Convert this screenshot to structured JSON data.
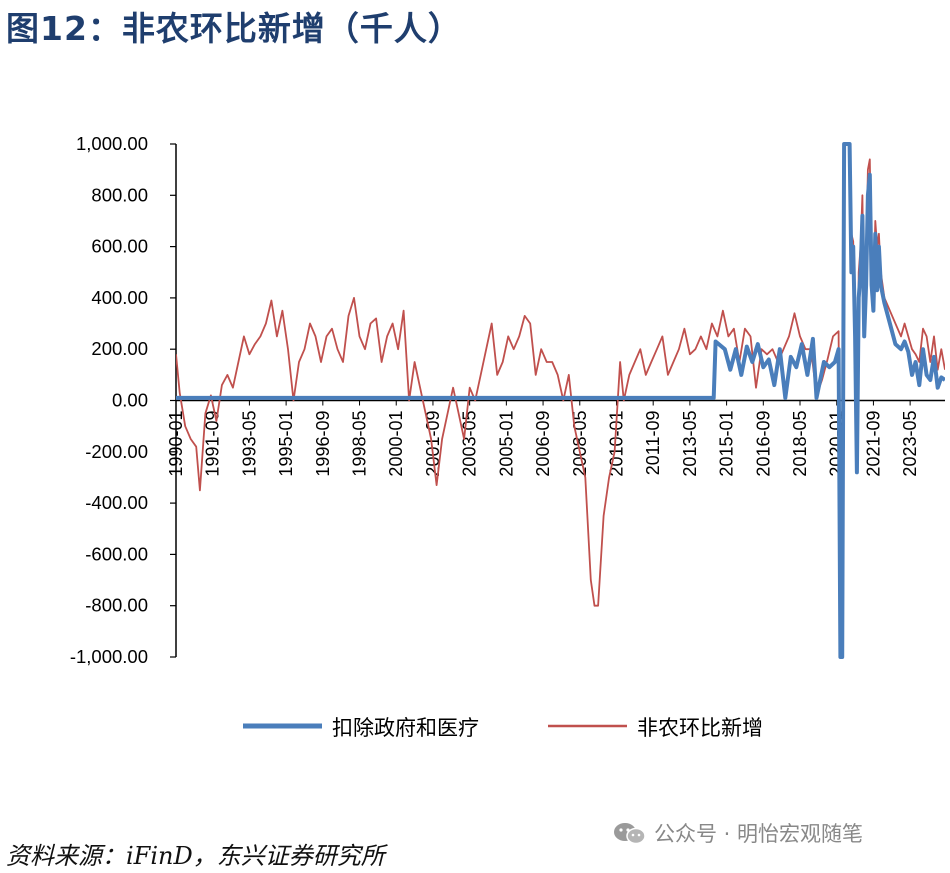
{
  "figure_title": "图12：非农环比新增（千人）",
  "source_note": "资料来源：iFinD，东兴证券研究所",
  "watermark": "公众号 · 明怡宏观随笔",
  "watermark_icon": "wechat-icon",
  "colors": {
    "title": "#1f3e6e",
    "series_ex_gov_health": "#4a7ebb",
    "series_nfp": "#c0504d",
    "axis": "#000000"
  },
  "chart_data": {
    "type": "line",
    "title": "",
    "xlabel": "",
    "ylabel": "",
    "ylim": [
      -1000,
      1000
    ],
    "yticks": [
      1000,
      800,
      600,
      400,
      200,
      0,
      -200,
      -400,
      -600,
      -800,
      -1000
    ],
    "ytick_labels": [
      "1,000.00",
      "800.00",
      "600.00",
      "400.00",
      "200.00",
      "0.00",
      "-200.00",
      "-400.00",
      "-600.00",
      "-800.00",
      "-1,000.00"
    ],
    "xlim": [
      "1990-01",
      "2024-12"
    ],
    "xtick_labels": [
      "1990-01",
      "1991-09",
      "1993-05",
      "1995-01",
      "1996-09",
      "1998-05",
      "2000-01",
      "2001-09",
      "2003-05",
      "2005-01",
      "2006-09",
      "2008-05",
      "2010-01",
      "2011-09",
      "2013-05",
      "2015-01",
      "2016-09",
      "2018-05",
      "2020-01",
      "2021-09",
      "2023-05"
    ],
    "legend_position": "bottom",
    "grid": false,
    "series": [
      {
        "name": "扣除政府和医疗",
        "color": "#4a7ebb",
        "note_x_format": "YYYY-MM",
        "points": [
          [
            "1990-01",
            10
          ],
          [
            "2014-06",
            10
          ],
          [
            "2014-07",
            230
          ],
          [
            "2014-12",
            200
          ],
          [
            "2015-03",
            120
          ],
          [
            "2015-06",
            200
          ],
          [
            "2015-09",
            100
          ],
          [
            "2015-12",
            210
          ],
          [
            "2016-03",
            150
          ],
          [
            "2016-06",
            220
          ],
          [
            "2016-09",
            130
          ],
          [
            "2016-12",
            160
          ],
          [
            "2017-03",
            60
          ],
          [
            "2017-06",
            200
          ],
          [
            "2017-09",
            10
          ],
          [
            "2017-12",
            170
          ],
          [
            "2018-03",
            130
          ],
          [
            "2018-06",
            220
          ],
          [
            "2018-09",
            100
          ],
          [
            "2018-12",
            240
          ],
          [
            "2019-02",
            10
          ],
          [
            "2019-06",
            150
          ],
          [
            "2019-09",
            130
          ],
          [
            "2019-12",
            150
          ],
          [
            "2020-02",
            200
          ],
          [
            "2020-03",
            -1000
          ],
          [
            "2020-04",
            -1000
          ],
          [
            "2020-05",
            1000
          ],
          [
            "2020-06",
            1000
          ],
          [
            "2020-07",
            1000
          ],
          [
            "2020-08",
            1000
          ],
          [
            "2020-09",
            500
          ],
          [
            "2020-10",
            600
          ],
          [
            "2020-11",
            250
          ],
          [
            "2020-12",
            -280
          ],
          [
            "2021-01",
            400
          ],
          [
            "2021-02",
            500
          ],
          [
            "2021-03",
            720
          ],
          [
            "2021-04",
            250
          ],
          [
            "2021-05",
            450
          ],
          [
            "2021-06",
            800
          ],
          [
            "2021-07",
            880
          ],
          [
            "2021-08",
            450
          ],
          [
            "2021-09",
            350
          ],
          [
            "2021-10",
            650
          ],
          [
            "2021-11",
            430
          ],
          [
            "2021-12",
            600
          ],
          [
            "2022-01",
            450
          ],
          [
            "2022-03",
            380
          ],
          [
            "2022-06",
            300
          ],
          [
            "2022-09",
            220
          ],
          [
            "2022-12",
            200
          ],
          [
            "2023-02",
            230
          ],
          [
            "2023-04",
            190
          ],
          [
            "2023-06",
            100
          ],
          [
            "2023-08",
            150
          ],
          [
            "2023-10",
            60
          ],
          [
            "2023-12",
            200
          ],
          [
            "2024-02",
            100
          ],
          [
            "2024-04",
            80
          ],
          [
            "2024-06",
            170
          ],
          [
            "2024-08",
            50
          ],
          [
            "2024-10",
            90
          ],
          [
            "2024-12",
            80
          ]
        ]
      },
      {
        "name": "非农环比新增",
        "color": "#c0504d",
        "note_x_format": "YYYY-MM",
        "points": [
          [
            "1990-01",
            180
          ],
          [
            "1990-03",
            30
          ],
          [
            "1990-06",
            -100
          ],
          [
            "1990-09",
            -150
          ],
          [
            "1990-12",
            -180
          ],
          [
            "1991-02",
            -350
          ],
          [
            "1991-05",
            -50
          ],
          [
            "1991-08",
            20
          ],
          [
            "1991-11",
            -80
          ],
          [
            "1992-02",
            60
          ],
          [
            "1992-05",
            100
          ],
          [
            "1992-08",
            50
          ],
          [
            "1992-11",
            150
          ],
          [
            "1993-02",
            250
          ],
          [
            "1993-05",
            180
          ],
          [
            "1993-08",
            220
          ],
          [
            "1993-11",
            250
          ],
          [
            "1994-02",
            300
          ],
          [
            "1994-05",
            390
          ],
          [
            "1994-08",
            250
          ],
          [
            "1994-11",
            350
          ],
          [
            "1995-02",
            200
          ],
          [
            "1995-05",
            0
          ],
          [
            "1995-08",
            150
          ],
          [
            "1995-11",
            200
          ],
          [
            "1996-02",
            300
          ],
          [
            "1996-05",
            250
          ],
          [
            "1996-08",
            150
          ],
          [
            "1996-11",
            250
          ],
          [
            "1997-02",
            280
          ],
          [
            "1997-05",
            200
          ],
          [
            "1997-08",
            150
          ],
          [
            "1997-11",
            330
          ],
          [
            "1998-02",
            400
          ],
          [
            "1998-05",
            250
          ],
          [
            "1998-08",
            200
          ],
          [
            "1998-11",
            300
          ],
          [
            "1999-02",
            320
          ],
          [
            "1999-05",
            150
          ],
          [
            "1999-08",
            250
          ],
          [
            "1999-11",
            300
          ],
          [
            "2000-02",
            200
          ],
          [
            "2000-05",
            350
          ],
          [
            "2000-08",
            0
          ],
          [
            "2000-11",
            150
          ],
          [
            "2001-02",
            50
          ],
          [
            "2001-05",
            -50
          ],
          [
            "2001-08",
            -150
          ],
          [
            "2001-11",
            -330
          ],
          [
            "2002-02",
            -150
          ],
          [
            "2002-05",
            -50
          ],
          [
            "2002-08",
            50
          ],
          [
            "2002-11",
            -50
          ],
          [
            "2003-02",
            -150
          ],
          [
            "2003-05",
            50
          ],
          [
            "2003-08",
            0
          ],
          [
            "2003-11",
            100
          ],
          [
            "2004-02",
            200
          ],
          [
            "2004-05",
            300
          ],
          [
            "2004-08",
            100
          ],
          [
            "2004-11",
            150
          ],
          [
            "2005-02",
            250
          ],
          [
            "2005-05",
            200
          ],
          [
            "2005-08",
            250
          ],
          [
            "2005-11",
            330
          ],
          [
            "2006-02",
            300
          ],
          [
            "2006-05",
            100
          ],
          [
            "2006-08",
            200
          ],
          [
            "2006-11",
            150
          ],
          [
            "2007-02",
            150
          ],
          [
            "2007-05",
            100
          ],
          [
            "2007-08",
            0
          ],
          [
            "2007-11",
            100
          ],
          [
            "2008-02",
            -100
          ],
          [
            "2008-05",
            -200
          ],
          [
            "2008-08",
            -300
          ],
          [
            "2008-11",
            -700
          ],
          [
            "2009-01",
            -800
          ],
          [
            "2009-03",
            -800
          ],
          [
            "2009-06",
            -450
          ],
          [
            "2009-09",
            -300
          ],
          [
            "2009-12",
            -200
          ],
          [
            "2010-03",
            150
          ],
          [
            "2010-05",
            0
          ],
          [
            "2010-08",
            100
          ],
          [
            "2010-11",
            150
          ],
          [
            "2011-02",
            200
          ],
          [
            "2011-05",
            100
          ],
          [
            "2011-08",
            150
          ],
          [
            "2011-11",
            200
          ],
          [
            "2012-02",
            250
          ],
          [
            "2012-05",
            100
          ],
          [
            "2012-08",
            150
          ],
          [
            "2012-11",
            200
          ],
          [
            "2013-02",
            280
          ],
          [
            "2013-05",
            180
          ],
          [
            "2013-08",
            200
          ],
          [
            "2013-11",
            250
          ],
          [
            "2014-02",
            200
          ],
          [
            "2014-05",
            300
          ],
          [
            "2014-08",
            250
          ],
          [
            "2014-11",
            350
          ],
          [
            "2015-02",
            250
          ],
          [
            "2015-05",
            280
          ],
          [
            "2015-08",
            150
          ],
          [
            "2015-11",
            280
          ],
          [
            "2016-02",
            250
          ],
          [
            "2016-05",
            50
          ],
          [
            "2016-08",
            200
          ],
          [
            "2016-11",
            180
          ],
          [
            "2017-02",
            200
          ],
          [
            "2017-05",
            150
          ],
          [
            "2017-08",
            200
          ],
          [
            "2017-11",
            250
          ],
          [
            "2018-02",
            340
          ],
          [
            "2018-05",
            250
          ],
          [
            "2018-08",
            200
          ],
          [
            "2018-11",
            200
          ],
          [
            "2019-02",
            20
          ],
          [
            "2019-05",
            80
          ],
          [
            "2019-08",
            160
          ],
          [
            "2019-11",
            250
          ],
          [
            "2020-02",
            270
          ],
          [
            "2020-03",
            -1000
          ],
          [
            "2020-04",
            -1000
          ],
          [
            "2020-05",
            1000
          ],
          [
            "2020-06",
            1000
          ],
          [
            "2020-07",
            1000
          ],
          [
            "2020-08",
            1000
          ],
          [
            "2020-09",
            650
          ],
          [
            "2020-10",
            620
          ],
          [
            "2020-11",
            250
          ],
          [
            "2020-12",
            -280
          ],
          [
            "2021-01",
            500
          ],
          [
            "2021-02",
            600
          ],
          [
            "2021-03",
            800
          ],
          [
            "2021-04",
            280
          ],
          [
            "2021-05",
            550
          ],
          [
            "2021-06",
            900
          ],
          [
            "2021-07",
            940
          ],
          [
            "2021-08",
            500
          ],
          [
            "2021-09",
            400
          ],
          [
            "2021-10",
            700
          ],
          [
            "2021-11",
            600
          ],
          [
            "2021-12",
            650
          ],
          [
            "2022-01",
            500
          ],
          [
            "2022-03",
            400
          ],
          [
            "2022-06",
            350
          ],
          [
            "2022-09",
            300
          ],
          [
            "2022-12",
            250
          ],
          [
            "2023-02",
            300
          ],
          [
            "2023-04",
            250
          ],
          [
            "2023-06",
            200
          ],
          [
            "2023-08",
            180
          ],
          [
            "2023-10",
            150
          ],
          [
            "2023-12",
            280
          ],
          [
            "2024-02",
            250
          ],
          [
            "2024-04",
            150
          ],
          [
            "2024-06",
            250
          ],
          [
            "2024-08",
            120
          ],
          [
            "2024-10",
            200
          ],
          [
            "2024-12",
            120
          ]
        ]
      }
    ]
  }
}
